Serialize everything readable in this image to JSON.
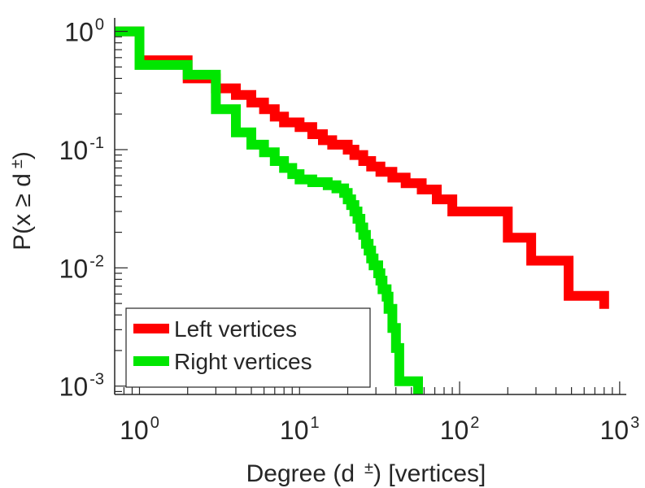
{
  "chart_data": {
    "type": "line",
    "x_scale": "log",
    "y_scale": "log",
    "xlim": [
      0.7,
      1100
    ],
    "ylim": [
      0.00085,
      1.3
    ],
    "xlabel": {
      "pre": "Degree (d",
      "sup": "±",
      "post": ") [vertices]"
    },
    "ylabel": {
      "pre": "P(x ≥ d",
      "sup": "±",
      "post": ")"
    },
    "x_ticks": [
      {
        "value": 1,
        "base": "10",
        "exp": "0"
      },
      {
        "value": 10,
        "base": "10",
        "exp": "1"
      },
      {
        "value": 100,
        "base": "10",
        "exp": "2"
      },
      {
        "value": 1000,
        "base": "10",
        "exp": "3"
      }
    ],
    "y_ticks": [
      {
        "value": 1,
        "base": "10",
        "exp": "0"
      },
      {
        "value": 0.1,
        "base": "10",
        "exp": "-1"
      },
      {
        "value": 0.01,
        "base": "10",
        "exp": "-2"
      },
      {
        "value": 0.001,
        "base": "10",
        "exp": "-3"
      }
    ],
    "grid": false,
    "legend_position": "bottom-left",
    "series": [
      {
        "name": "Left vertices",
        "color": "#ff0000",
        "step": true,
        "points": [
          [
            0.7,
            1.0
          ],
          [
            1,
            1.0
          ],
          [
            1,
            0.57
          ],
          [
            2,
            0.57
          ],
          [
            2,
            0.4
          ],
          [
            3,
            0.4
          ],
          [
            3,
            0.33
          ],
          [
            4,
            0.33
          ],
          [
            4,
            0.29
          ],
          [
            5,
            0.29
          ],
          [
            5,
            0.25
          ],
          [
            6,
            0.25
          ],
          [
            6,
            0.22
          ],
          [
            7,
            0.22
          ],
          [
            7,
            0.19
          ],
          [
            8,
            0.19
          ],
          [
            8,
            0.17
          ],
          [
            10,
            0.17
          ],
          [
            10,
            0.155
          ],
          [
            12,
            0.155
          ],
          [
            12,
            0.135
          ],
          [
            14,
            0.135
          ],
          [
            14,
            0.12
          ],
          [
            16,
            0.12
          ],
          [
            16,
            0.11
          ],
          [
            20,
            0.11
          ],
          [
            20,
            0.1
          ],
          [
            22,
            0.1
          ],
          [
            22,
            0.09
          ],
          [
            25,
            0.09
          ],
          [
            25,
            0.08
          ],
          [
            28,
            0.08
          ],
          [
            28,
            0.072
          ],
          [
            32,
            0.072
          ],
          [
            32,
            0.065
          ],
          [
            38,
            0.065
          ],
          [
            38,
            0.058
          ],
          [
            46,
            0.058
          ],
          [
            46,
            0.052
          ],
          [
            58,
            0.052
          ],
          [
            58,
            0.046
          ],
          [
            72,
            0.046
          ],
          [
            72,
            0.038
          ],
          [
            90,
            0.038
          ],
          [
            90,
            0.03
          ],
          [
            200,
            0.03
          ],
          [
            200,
            0.018
          ],
          [
            280,
            0.018
          ],
          [
            280,
            0.0115
          ],
          [
            480,
            0.0115
          ],
          [
            480,
            0.0058
          ],
          [
            800,
            0.0058
          ],
          [
            800,
            0.0045
          ]
        ]
      },
      {
        "name": "Right vertices",
        "color": "#00e600",
        "step": true,
        "points": [
          [
            0.7,
            1.0
          ],
          [
            1,
            1.0
          ],
          [
            1,
            0.52
          ],
          [
            2,
            0.52
          ],
          [
            2,
            0.43
          ],
          [
            3,
            0.43
          ],
          [
            3,
            0.22
          ],
          [
            4,
            0.22
          ],
          [
            4,
            0.14
          ],
          [
            5,
            0.14
          ],
          [
            5,
            0.11
          ],
          [
            6,
            0.11
          ],
          [
            6,
            0.095
          ],
          [
            7,
            0.095
          ],
          [
            7,
            0.08
          ],
          [
            8,
            0.08
          ],
          [
            8,
            0.07
          ],
          [
            9,
            0.07
          ],
          [
            9,
            0.062
          ],
          [
            10,
            0.062
          ],
          [
            10,
            0.056
          ],
          [
            12,
            0.056
          ],
          [
            12,
            0.053
          ],
          [
            15,
            0.053
          ],
          [
            15,
            0.05
          ],
          [
            17,
            0.05
          ],
          [
            17,
            0.047
          ],
          [
            19,
            0.047
          ],
          [
            19,
            0.043
          ],
          [
            20,
            0.043
          ],
          [
            20,
            0.038
          ],
          [
            21,
            0.038
          ],
          [
            21,
            0.034
          ],
          [
            22,
            0.034
          ],
          [
            22,
            0.03
          ],
          [
            23,
            0.03
          ],
          [
            23,
            0.026
          ],
          [
            24,
            0.026
          ],
          [
            24,
            0.022
          ],
          [
            25,
            0.022
          ],
          [
            25,
            0.019
          ],
          [
            26,
            0.019
          ],
          [
            26,
            0.016
          ],
          [
            27,
            0.016
          ],
          [
            27,
            0.014
          ],
          [
            28,
            0.014
          ],
          [
            28,
            0.012
          ],
          [
            29,
            0.012
          ],
          [
            29,
            0.0105
          ],
          [
            31,
            0.0105
          ],
          [
            31,
            0.009
          ],
          [
            32,
            0.009
          ],
          [
            32,
            0.0078
          ],
          [
            33,
            0.0078
          ],
          [
            33,
            0.0066
          ],
          [
            35,
            0.0066
          ],
          [
            35,
            0.0057
          ],
          [
            36,
            0.0057
          ],
          [
            36,
            0.0045
          ],
          [
            38,
            0.0045
          ],
          [
            38,
            0.0031
          ],
          [
            40,
            0.0031
          ],
          [
            40,
            0.0021
          ],
          [
            42,
            0.0021
          ],
          [
            42,
            0.0011
          ],
          [
            55,
            0.0011
          ],
          [
            55,
            0.00085
          ]
        ]
      }
    ]
  }
}
